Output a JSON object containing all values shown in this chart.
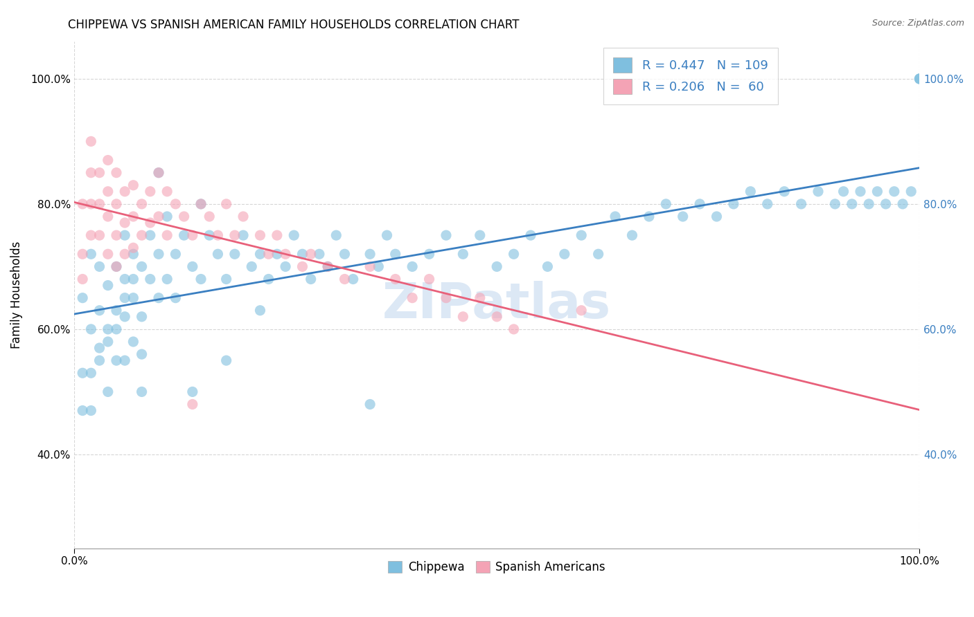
{
  "title": "CHIPPEWA VS SPANISH AMERICAN FAMILY HOUSEHOLDS CORRELATION CHART",
  "source": "Source: ZipAtlas.com",
  "ylabel": "Family Households",
  "chippewa_color": "#7fbfdf",
  "spanish_color": "#f4a3b5",
  "blue_line_color": "#3a7fc1",
  "pink_line_color": "#e8607a",
  "watermark": "ZIPatlas",
  "ylim": [
    0.25,
    1.06
  ],
  "xlim": [
    0.0,
    1.0
  ],
  "yticks": [
    0.4,
    0.6,
    0.8,
    1.0
  ],
  "ytick_labels": [
    "40.0%",
    "60.0%",
    "80.0%",
    "100.0%"
  ],
  "xticks": [
    0.0,
    0.125,
    0.25,
    0.375,
    0.5,
    0.625,
    0.75,
    0.875,
    1.0
  ],
  "right_ytick_color": "#3a7fc1",
  "legend_line1": "R = 0.447   N = 109",
  "legend_line2": "R = 0.206   N =  60",
  "bottom_legend_labels": [
    "Chippewa",
    "Spanish Americans"
  ],
  "chippewa_x": [
    0.01,
    0.02,
    0.02,
    0.03,
    0.03,
    0.04,
    0.04,
    0.05,
    0.05,
    0.05,
    0.06,
    0.06,
    0.06,
    0.07,
    0.07,
    0.07,
    0.08,
    0.08,
    0.09,
    0.09,
    0.1,
    0.1,
    0.11,
    0.11,
    0.12,
    0.12,
    0.13,
    0.14,
    0.15,
    0.15,
    0.16,
    0.17,
    0.18,
    0.19,
    0.2,
    0.21,
    0.22,
    0.23,
    0.24,
    0.25,
    0.26,
    0.27,
    0.28,
    0.29,
    0.3,
    0.31,
    0.32,
    0.33,
    0.35,
    0.36,
    0.37,
    0.38,
    0.4,
    0.42,
    0.44,
    0.46,
    0.48,
    0.5,
    0.52,
    0.54,
    0.56,
    0.58,
    0.6,
    0.62,
    0.64,
    0.66,
    0.68,
    0.7,
    0.72,
    0.74,
    0.76,
    0.78,
    0.8,
    0.82,
    0.84,
    0.86,
    0.88,
    0.9,
    0.91,
    0.92,
    0.93,
    0.94,
    0.95,
    0.96,
    0.97,
    0.98,
    0.99,
    1.0,
    1.0,
    1.0,
    0.35,
    0.1,
    0.18,
    0.22,
    0.14,
    0.08,
    0.06,
    0.04,
    0.03,
    0.02,
    0.01,
    0.01,
    0.02,
    0.03,
    0.04,
    0.05,
    0.06,
    0.07,
    0.08
  ],
  "chippewa_y": [
    0.65,
    0.6,
    0.72,
    0.63,
    0.7,
    0.58,
    0.67,
    0.63,
    0.7,
    0.55,
    0.68,
    0.75,
    0.62,
    0.72,
    0.65,
    0.58,
    0.7,
    0.62,
    0.75,
    0.68,
    0.72,
    0.65,
    0.78,
    0.68,
    0.72,
    0.65,
    0.75,
    0.7,
    0.8,
    0.68,
    0.75,
    0.72,
    0.68,
    0.72,
    0.75,
    0.7,
    0.72,
    0.68,
    0.72,
    0.7,
    0.75,
    0.72,
    0.68,
    0.72,
    0.7,
    0.75,
    0.72,
    0.68,
    0.72,
    0.7,
    0.75,
    0.72,
    0.7,
    0.72,
    0.75,
    0.72,
    0.75,
    0.7,
    0.72,
    0.75,
    0.7,
    0.72,
    0.75,
    0.72,
    0.78,
    0.75,
    0.78,
    0.8,
    0.78,
    0.8,
    0.78,
    0.8,
    0.82,
    0.8,
    0.82,
    0.8,
    0.82,
    0.8,
    0.82,
    0.8,
    0.82,
    0.8,
    0.82,
    0.8,
    0.82,
    0.8,
    0.82,
    1.0,
    1.0,
    1.0,
    0.48,
    0.85,
    0.55,
    0.63,
    0.5,
    0.5,
    0.55,
    0.5,
    0.55,
    0.47,
    0.47,
    0.53,
    0.53,
    0.57,
    0.6,
    0.6,
    0.65,
    0.68,
    0.56
  ],
  "spanish_x": [
    0.01,
    0.01,
    0.01,
    0.02,
    0.02,
    0.02,
    0.02,
    0.03,
    0.03,
    0.03,
    0.04,
    0.04,
    0.04,
    0.04,
    0.05,
    0.05,
    0.05,
    0.05,
    0.06,
    0.06,
    0.06,
    0.07,
    0.07,
    0.07,
    0.08,
    0.08,
    0.09,
    0.09,
    0.1,
    0.1,
    0.11,
    0.11,
    0.12,
    0.13,
    0.14,
    0.15,
    0.16,
    0.17,
    0.18,
    0.19,
    0.2,
    0.22,
    0.23,
    0.24,
    0.25,
    0.27,
    0.28,
    0.3,
    0.32,
    0.35,
    0.38,
    0.4,
    0.42,
    0.44,
    0.46,
    0.48,
    0.5,
    0.52,
    0.6,
    0.14
  ],
  "spanish_y": [
    0.68,
    0.72,
    0.8,
    0.75,
    0.8,
    0.85,
    0.9,
    0.8,
    0.85,
    0.75,
    0.82,
    0.87,
    0.78,
    0.72,
    0.85,
    0.8,
    0.75,
    0.7,
    0.82,
    0.77,
    0.72,
    0.83,
    0.78,
    0.73,
    0.8,
    0.75,
    0.82,
    0.77,
    0.85,
    0.78,
    0.82,
    0.75,
    0.8,
    0.78,
    0.75,
    0.8,
    0.78,
    0.75,
    0.8,
    0.75,
    0.78,
    0.75,
    0.72,
    0.75,
    0.72,
    0.7,
    0.72,
    0.7,
    0.68,
    0.7,
    0.68,
    0.65,
    0.68,
    0.65,
    0.62,
    0.65,
    0.62,
    0.6,
    0.63,
    0.48
  ]
}
